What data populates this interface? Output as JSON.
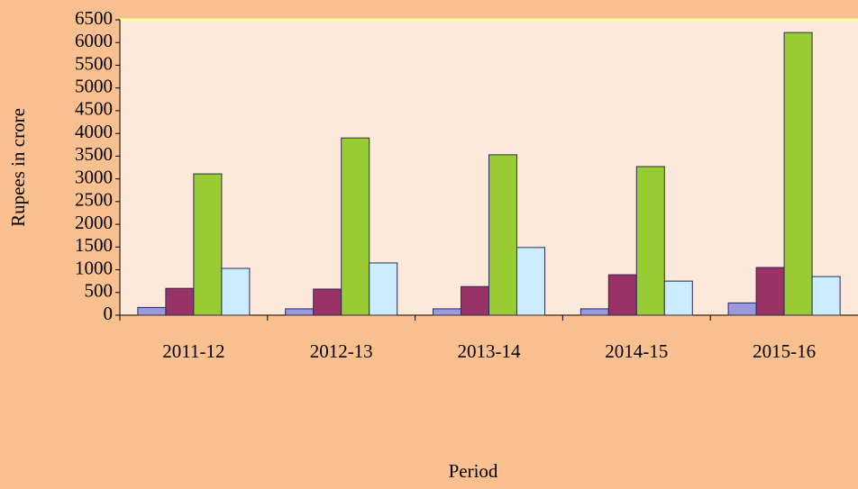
{
  "chart_data": {
    "type": "bar",
    "xlabel": "Period",
    "ylabel": "Rupees in crore",
    "categories": [
      "2011-12",
      "2012-13",
      "2013-14",
      "2014-15",
      "2015-16"
    ],
    "series": [
      {
        "color": "#9999dd",
        "values": [
          170,
          140,
          140,
          140,
          270
        ]
      },
      {
        "color": "#993366",
        "values": [
          590,
          575,
          630,
          890,
          1050
        ]
      },
      {
        "color": "#99cc33",
        "values": [
          3110,
          3900,
          3530,
          3270,
          6220
        ]
      },
      {
        "color": "#ccecff",
        "values": [
          1030,
          1150,
          1490,
          750,
          850
        ]
      }
    ],
    "ylim": [
      0,
      6500
    ],
    "yticks": [
      0,
      500,
      1000,
      1500,
      2000,
      2500,
      3000,
      3500,
      4000,
      4500,
      5000,
      5500,
      6000,
      6500
    ],
    "grid": false
  }
}
